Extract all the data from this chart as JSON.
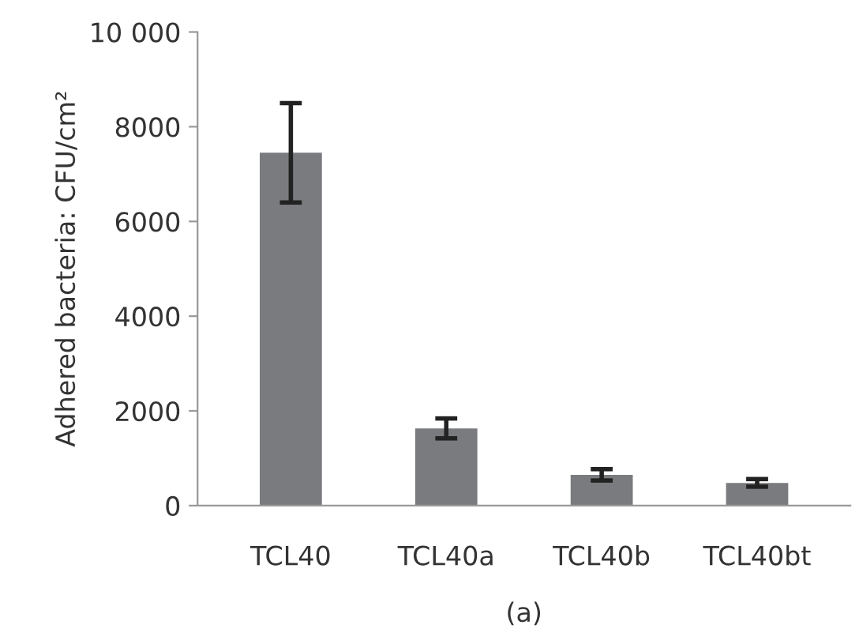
{
  "chart_data": {
    "type": "bar",
    "ylabel": "Adhered bacteria: CFU/cm²",
    "categories": [
      "TCL40",
      "TCL40a",
      "TCL40b",
      "TCL40bt"
    ],
    "values": [
      7450,
      1630,
      650,
      480
    ],
    "errors": [
      1050,
      210,
      120,
      80
    ],
    "color": "#7a7b7e",
    "ylim": [
      0,
      10000
    ],
    "yticks": [
      0,
      2000,
      4000,
      6000,
      8000,
      {
        "value": 10000,
        "label": "10 000"
      }
    ],
    "grid": false,
    "annotations": [
      "(a)"
    ]
  }
}
